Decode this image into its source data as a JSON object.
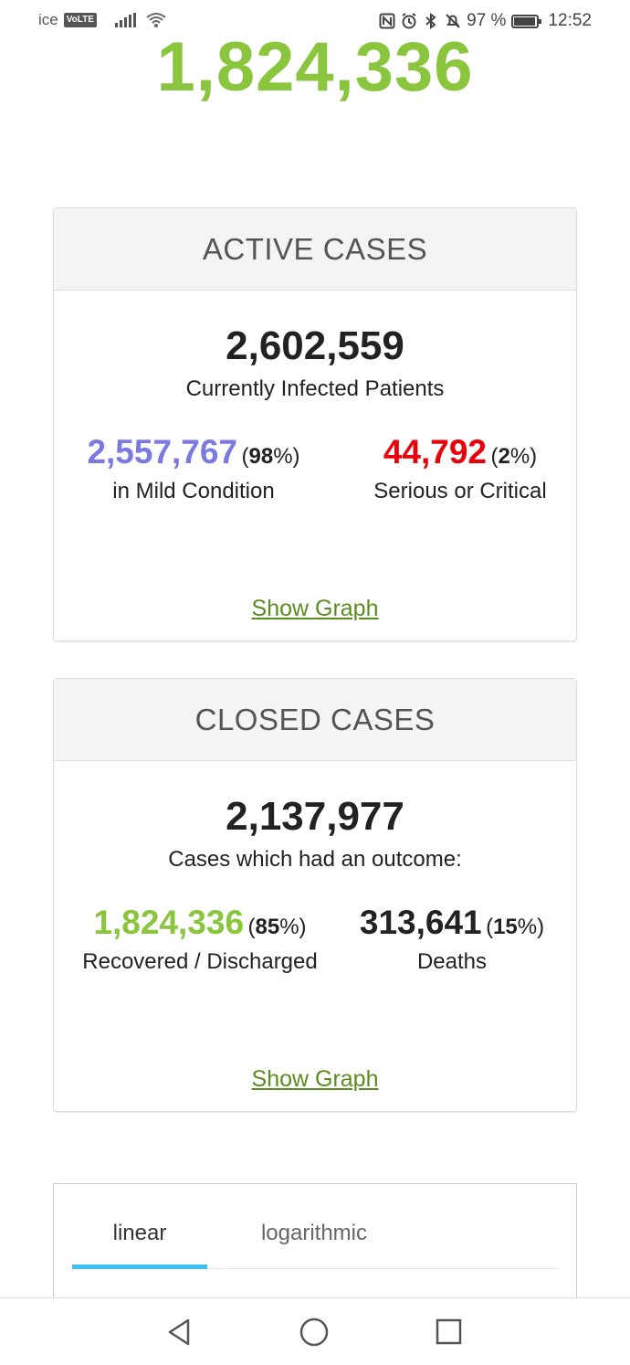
{
  "status_bar": {
    "carrier": "ice",
    "volte": "VoLTE",
    "battery_percent": "97 %",
    "time": "12:52",
    "icons": [
      "nfc-icon",
      "alarm-icon",
      "bluetooth-icon",
      "mute-icon",
      "battery-icon"
    ]
  },
  "headline": {
    "recovered_total": "1,824,336"
  },
  "active_cases": {
    "title": "ACTIVE CASES",
    "total": "2,602,559",
    "total_label": "Currently Infected Patients",
    "mild": {
      "value": "2,557,767",
      "pct_open": "(",
      "pct": "98",
      "pct_close": "%)",
      "label": "in Mild Condition",
      "color": "#7a7ae0"
    },
    "serious": {
      "value": "44,792",
      "pct_open": "(",
      "pct": "2",
      "pct_close": "%)",
      "label": "Serious or Critical",
      "color": "#e8000b"
    },
    "show_graph": "Show Graph"
  },
  "closed_cases": {
    "title": "CLOSED CASES",
    "total": "2,137,977",
    "total_label": "Cases which had an outcome:",
    "recovered": {
      "value": "1,824,336",
      "pct_open": "(",
      "pct": "85",
      "pct_close": "%)",
      "label": "Recovered / Discharged",
      "color": "#8ac53e"
    },
    "deaths": {
      "value": "313,641",
      "pct_open": "(",
      "pct": "15",
      "pct_close": "%)",
      "label": "Deaths",
      "color": "#222222"
    },
    "show_graph": "Show Graph"
  },
  "graph_tabs": {
    "tabs": [
      "linear",
      "logarithmic"
    ],
    "active": "linear",
    "accent": "#3dc1f3"
  },
  "nav": {
    "buttons": [
      "back-icon",
      "home-icon",
      "recents-icon"
    ]
  }
}
